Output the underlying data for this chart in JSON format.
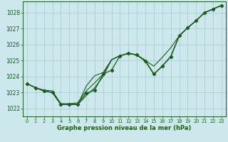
{
  "bg_color": "#cce8ec",
  "grid_color": "#aacdd4",
  "line_color": "#1a5c1a",
  "xlabel": "Graphe pression niveau de la mer (hPa)",
  "xlabel_color": "#1a5c1a",
  "ylim": [
    1021.5,
    1028.7
  ],
  "xlim": [
    -0.5,
    23.5
  ],
  "yticks": [
    1022,
    1023,
    1024,
    1025,
    1026,
    1027,
    1028
  ],
  "xticks": [
    0,
    1,
    2,
    3,
    4,
    5,
    6,
    7,
    8,
    9,
    10,
    11,
    12,
    13,
    14,
    15,
    16,
    17,
    18,
    19,
    20,
    21,
    22,
    23
  ],
  "series_smooth": [
    1023.55,
    1023.3,
    1023.15,
    1023.1,
    1022.3,
    1022.3,
    1022.35,
    1023.1,
    1023.6,
    1024.15,
    1025.05,
    1025.3,
    1025.45,
    1025.35,
    1025.0,
    1024.65,
    1025.2,
    1025.8,
    1026.55,
    1027.05,
    1027.5,
    1028.0,
    1028.22,
    1028.45
  ],
  "series_dip1": [
    1023.55,
    1023.3,
    1023.1,
    1023.0,
    1022.25,
    1022.25,
    1022.25,
    1022.8,
    1023.3,
    1024.0,
    1025.05,
    1025.3,
    1025.45,
    1025.35,
    1025.0,
    1024.15,
    1024.65,
    1025.25,
    1026.55,
    1027.05,
    1027.5,
    1028.0,
    1028.22,
    1028.45
  ],
  "series_dip2": [
    1023.55,
    1023.3,
    1023.1,
    1023.0,
    1022.25,
    1022.25,
    1022.25,
    1023.4,
    1024.05,
    1024.25,
    1025.05,
    1025.3,
    1025.45,
    1025.35,
    1024.95,
    1024.15,
    1024.65,
    1025.25,
    1026.55,
    1027.05,
    1027.5,
    1028.0,
    1028.22,
    1028.45
  ],
  "series_marker": [
    1023.55,
    1023.3,
    1023.1,
    1023.0,
    1022.25,
    1022.25,
    1022.25,
    1022.95,
    1023.15,
    1024.15,
    1024.4,
    1025.3,
    1025.45,
    1025.35,
    1024.95,
    1024.15,
    1024.65,
    1025.25,
    1026.55,
    1027.05,
    1027.5,
    1028.0,
    1028.22,
    1028.45
  ]
}
